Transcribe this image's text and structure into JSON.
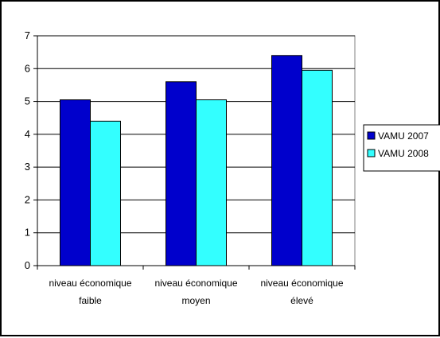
{
  "chart_data": {
    "type": "bar",
    "title": "",
    "xlabel": "",
    "ylabel": "",
    "categories": [
      [
        "niveau économique",
        "faible"
      ],
      [
        "niveau économique",
        "moyen"
      ],
      [
        "niveau économique",
        "élevé"
      ]
    ],
    "series": [
      {
        "name": "VAMU 2007",
        "values": [
          5.05,
          5.6,
          6.4
        ],
        "color": "#0000cc"
      },
      {
        "name": "VAMU 2008",
        "values": [
          4.4,
          5.05,
          5.95
        ],
        "color": "#33ffff"
      }
    ],
    "ylim": [
      0,
      7
    ],
    "yticks": [
      "0",
      "1",
      "2",
      "3",
      "4",
      "5",
      "6",
      "7"
    ],
    "grid": true,
    "legend_position": "right",
    "plot_background": "#ffffff",
    "gridline_color": "#000000"
  }
}
